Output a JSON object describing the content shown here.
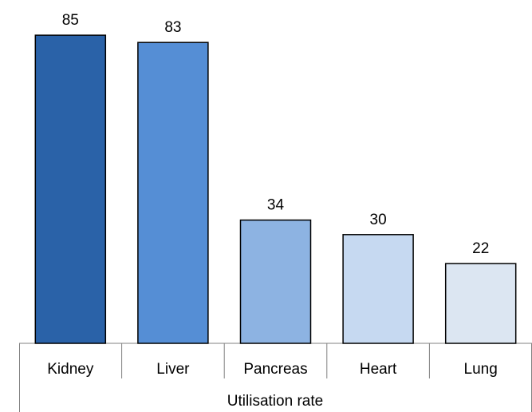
{
  "chart_data": {
    "type": "bar",
    "x_label": "Utilisation rate",
    "categories": [
      "Kidney",
      "Liver",
      "Pancreas",
      "Heart",
      "Lung"
    ],
    "values": [
      85,
      83,
      34,
      30,
      22
    ],
    "colors": [
      "#2a62a8",
      "#558ed5",
      "#8db3e2",
      "#c6d9f1",
      "#dce6f2"
    ]
  }
}
